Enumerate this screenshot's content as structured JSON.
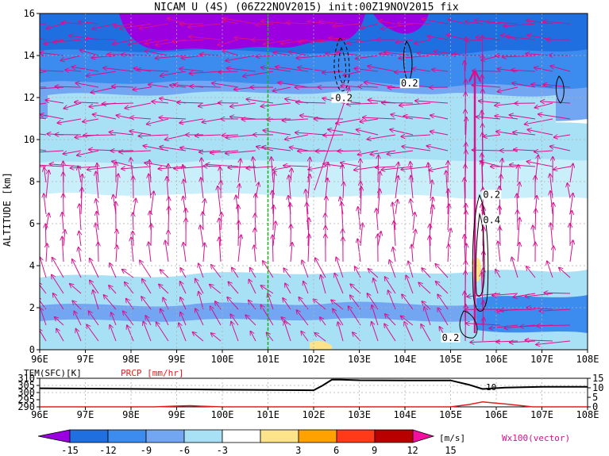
{
  "chart_data": [
    {
      "type": "heatmap",
      "title": "NICAM U (4S) (06Z22NOV2015) init:00Z19NOV2015 fix",
      "xlabel": "",
      "ylabel": "ALTITUDE [km]",
      "x_ticks": [
        "96E",
        "97E",
        "98E",
        "99E",
        "100E",
        "101E",
        "102E",
        "103E",
        "104E",
        "105E",
        "106E",
        "107E",
        "108E"
      ],
      "y_ticks": [
        "0",
        "2",
        "4",
        "6",
        "8",
        "10",
        "12",
        "14",
        "16"
      ],
      "xlim": [
        96,
        108
      ],
      "ylim": [
        0,
        16
      ],
      "marker_line_lon": 101,
      "contour_labels": [
        {
          "text": "-0.2",
          "lon": 102.6,
          "alt": 11.9
        },
        {
          "text": "0.2",
          "lon": 104.1,
          "alt": 12.6
        },
        {
          "text": "0.2",
          "lon": 105.9,
          "alt": 7.3
        },
        {
          "text": "0.4",
          "lon": 105.9,
          "alt": 6.1
        },
        {
          "text": "0.2",
          "lon": 105.0,
          "alt": 0.5
        }
      ],
      "colorbar": {
        "ticks": [
          "-15",
          "-12",
          "-9",
          "-6",
          "-3",
          "3",
          "6",
          "9",
          "12",
          "15"
        ],
        "unit": "[m/s]",
        "colors": [
          "#9b00e0",
          "#1f6fe0",
          "#3c8bef",
          "#72a6f2",
          "#a8e0f5",
          "#ffffff",
          "#fde48a",
          "#ffa100",
          "#fe3a18",
          "#b90000",
          "#f30f9f"
        ]
      },
      "vector_label": "Wx100(vector)",
      "vector_color": "#d90f8c"
    },
    {
      "type": "line",
      "title": "",
      "series": [
        {
          "name": "TEM(SFC)[K]",
          "color": "#000000",
          "x": [
            96,
            97,
            98,
            99,
            100,
            101,
            102,
            102.2,
            102.4,
            102.6,
            103,
            104,
            105,
            105.4,
            105.7,
            106.2,
            107,
            108
          ],
          "values": [
            303,
            302.8,
            302.6,
            302.3,
            302,
            301.8,
            301.6,
            305,
            309,
            309,
            308.6,
            308.5,
            308.5,
            305.5,
            302.5,
            303.5,
            304,
            304
          ]
        },
        {
          "name": "PRCP [mm/hr]",
          "color": "#e02020",
          "x": [
            96,
            98.5,
            99,
            99.3,
            99.6,
            100,
            105,
            105.4,
            105.7,
            106.2,
            106.8,
            108
          ],
          "values": [
            0,
            0,
            0.4,
            0.6,
            0.3,
            0,
            0,
            1.2,
            2.6,
            1.5,
            0,
            0
          ]
        }
      ],
      "left_axis_ticks": [
        "310",
        "305",
        "300",
        "295",
        "290"
      ],
      "right_axis_ticks": [
        "15",
        "10",
        "5",
        "0"
      ],
      "left_ylim": [
        290,
        310
      ],
      "right_ylim": [
        0,
        15
      ],
      "x_ticks": [
        "96E",
        "97E",
        "98E",
        "99E",
        "100E",
        "101E",
        "102E",
        "103E",
        "104E",
        "105E",
        "106E",
        "107E",
        "108E"
      ],
      "annotation": "10",
      "xlim": [
        96,
        108
      ]
    }
  ]
}
